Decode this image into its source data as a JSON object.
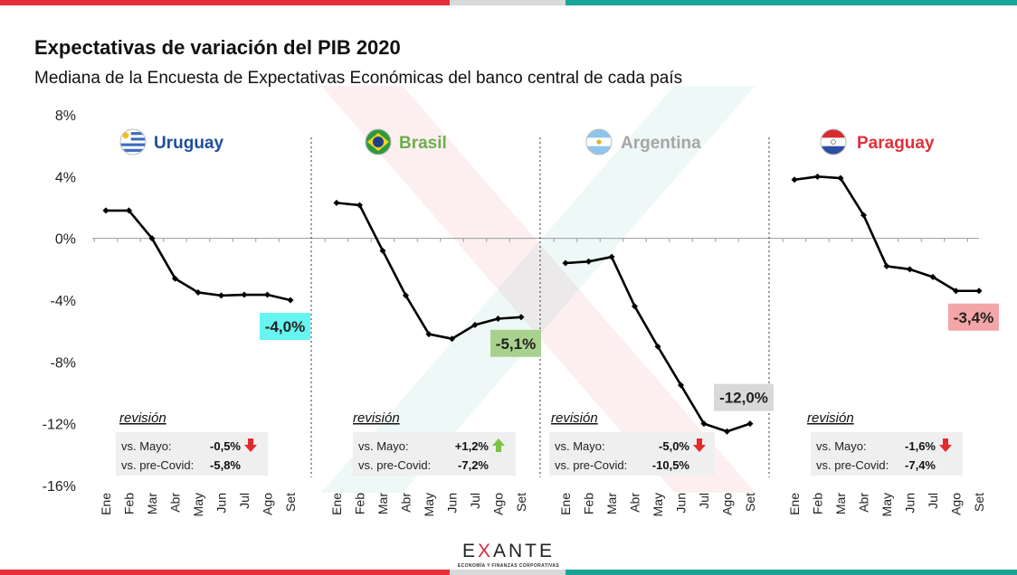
{
  "title": "Expectativas de variación del PIB 2020",
  "subtitle": "Mediana de la Encuesta de Expectativas Económicas del banco central de cada país",
  "logo": {
    "name": "EXANTE",
    "tagline": "ECONOMÍA Y FINANZAS CORPORATIVAS"
  },
  "colors": {
    "red": "#e5303c",
    "gray": "#d9d9d9",
    "teal": "#1aa497"
  },
  "chart_data": {
    "type": "line",
    "y_axis": {
      "ticks": [
        "8%",
        "4%",
        "0%",
        "-4%",
        "-8%",
        "-12%",
        "-16%"
      ],
      "tick_values": [
        8,
        4,
        0,
        -4,
        -8,
        -12,
        -16
      ],
      "ylim": [
        -16,
        8
      ]
    },
    "months": [
      "Ene",
      "Feb",
      "Mar",
      "Abr",
      "May",
      "Jun",
      "Jul",
      "Ago",
      "Set"
    ],
    "revision_label": "revisión",
    "panels": [
      {
        "country": "Uruguay",
        "flag": "uruguay",
        "color": "#1f4e99",
        "values": [
          1.8,
          1.8,
          0.0,
          -2.6,
          -3.5,
          -3.7,
          -3.65,
          -3.65,
          -4.0
        ],
        "final_label": "-4,0%",
        "final_bg": "#66f5f0",
        "rev": [
          {
            "label": "vs. Mayo:",
            "value": "-0,5%",
            "arrow": "down"
          },
          {
            "label": "vs. pre-Covid:",
            "value": "-5,8%",
            "arrow": ""
          }
        ]
      },
      {
        "country": "Brasil",
        "flag": "brasil",
        "color": "#6ab04c",
        "values": [
          2.3,
          2.15,
          -0.8,
          -3.7,
          -6.2,
          -6.5,
          -5.6,
          -5.2,
          -5.1
        ],
        "final_label": "-5,1%",
        "final_bg": "#a9d18e",
        "rev": [
          {
            "label": "vs. Mayo:",
            "value": "+1,2%",
            "arrow": "up"
          },
          {
            "label": "vs. pre-Covid:",
            "value": "-7,2%",
            "arrow": ""
          }
        ]
      },
      {
        "country": "Argentina",
        "flag": "argentina",
        "color": "#a6a6a6",
        "values": [
          -1.6,
          -1.5,
          -1.2,
          -4.4,
          -7.0,
          -9.5,
          -12.0,
          -12.5,
          -12.0
        ],
        "final_label": "-12,0%",
        "final_bg": "#d9d9d9",
        "rev": [
          {
            "label": "vs. Mayo:",
            "value": "-5,0%",
            "arrow": "down"
          },
          {
            "label": "vs. pre-Covid:",
            "value": "-10,5%",
            "arrow": ""
          }
        ]
      },
      {
        "country": "Paraguay",
        "flag": "paraguay",
        "color": "#e0303c",
        "values": [
          3.8,
          4.0,
          3.9,
          1.5,
          -1.8,
          -2.0,
          -2.5,
          -3.4,
          -3.4
        ],
        "final_label": "-3,4%",
        "final_bg": "#f4a5a8",
        "rev": [
          {
            "label": "vs. Mayo:",
            "value": "-1,6%",
            "arrow": "down"
          },
          {
            "label": "vs. pre-Covid:",
            "value": "-7,4%",
            "arrow": ""
          }
        ]
      }
    ]
  }
}
